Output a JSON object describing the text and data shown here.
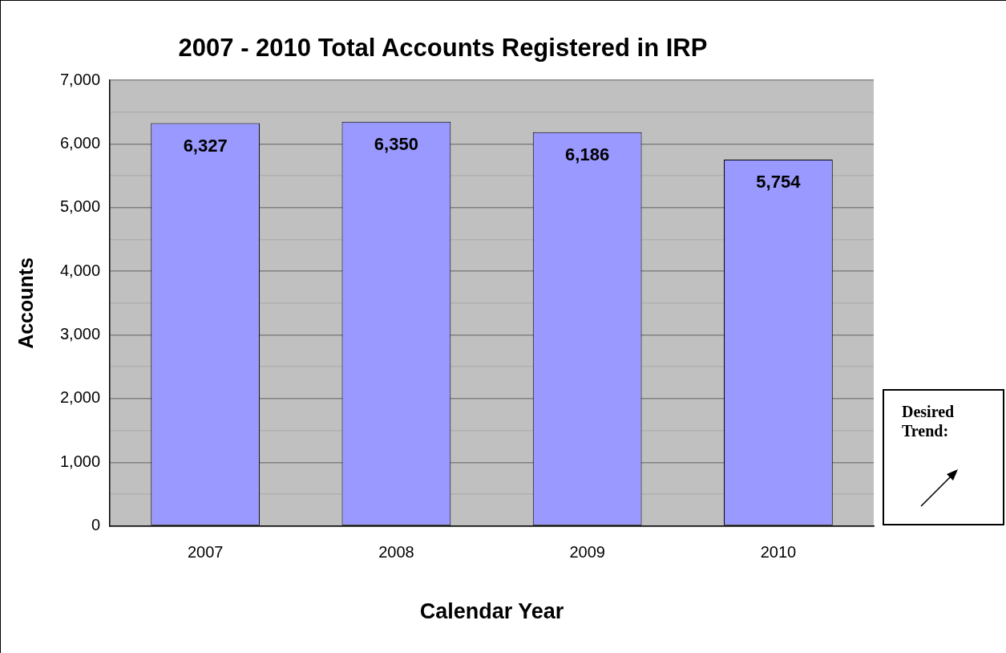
{
  "chart_data": {
    "type": "bar",
    "title": "2007 - 2010 Total Accounts Registered in IRP",
    "xlabel": "Calendar Year",
    "ylabel": "Accounts",
    "categories": [
      "2007",
      "2008",
      "2009",
      "2010"
    ],
    "values": [
      6327,
      6350,
      6186,
      5754
    ],
    "color": "#9999ff",
    "value_labels": [
      "6,327",
      "6,350",
      "6,186",
      "5,754"
    ],
    "ylim": [
      0,
      7000
    ],
    "yticks": [
      0,
      {
        "value": 500,
        "label": null
      },
      {
        "value": 1000,
        "label": "1,000"
      },
      {
        "value": 1500,
        "label": null
      },
      {
        "value": 2000,
        "label": "2,000"
      },
      {
        "value": 2500,
        "label": null
      },
      {
        "value": 3000,
        "label": "3,000"
      },
      {
        "value": 3500,
        "label": null
      },
      {
        "value": 4000,
        "label": "4,000"
      },
      {
        "value": 4500,
        "label": null
      },
      {
        "value": 5000,
        "label": "5,000"
      },
      {
        "value": 5500,
        "label": null
      },
      {
        "value": 6000,
        "label": "6,000"
      },
      {
        "value": 6500,
        "label": null
      },
      {
        "value": 7000,
        "label": "7,000"
      }
    ],
    "grid": "y",
    "annotations": [
      "Desired Trend:"
    ]
  }
}
